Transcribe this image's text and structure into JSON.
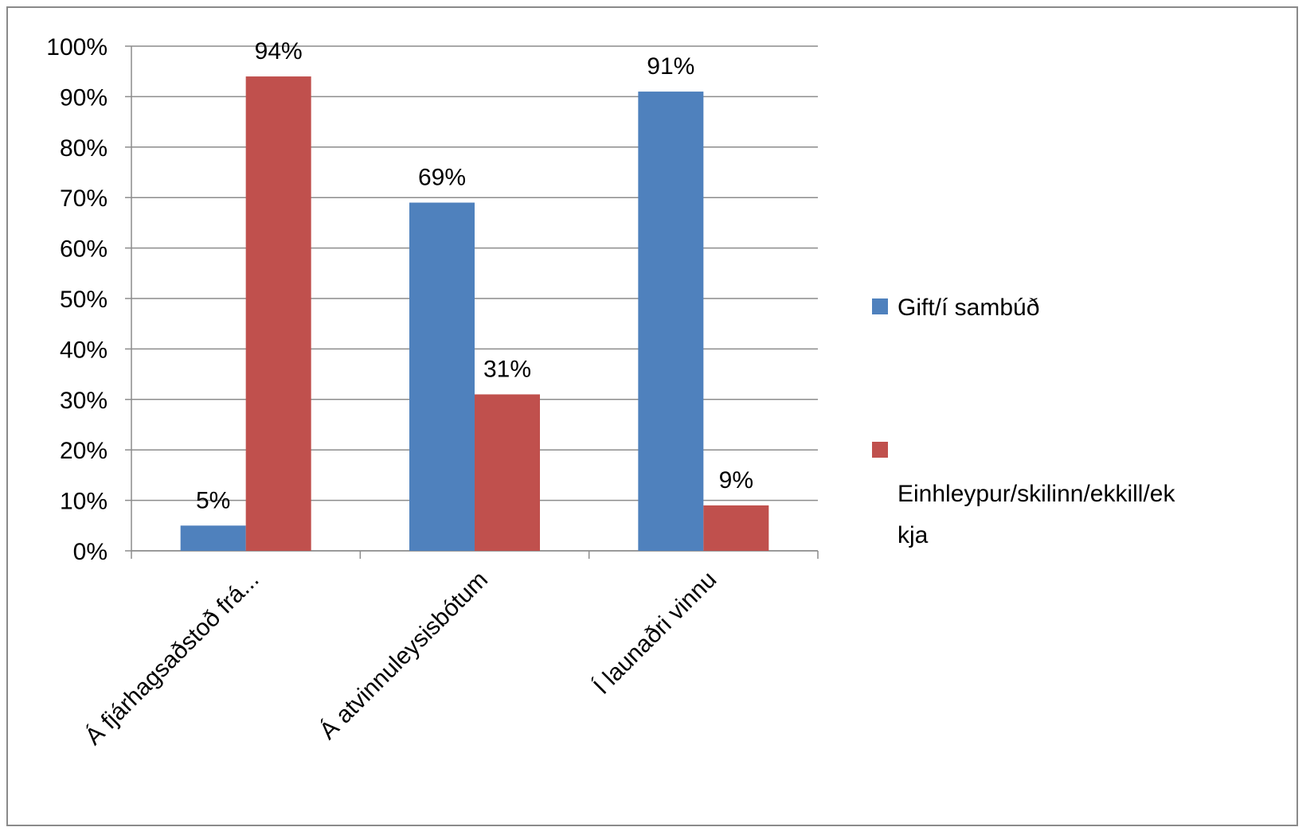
{
  "chart_data": {
    "type": "bar",
    "categories": [
      "Á fjárhagsaðstoð frá...",
      "Á atvinnuleysisbótum",
      "Í launaðri vinnu"
    ],
    "series": [
      {
        "name": "Gift/í sambúð",
        "color": "#4f81bd",
        "values": [
          5,
          69,
          91
        ],
        "labels": [
          "5%",
          "69%",
          "91%"
        ]
      },
      {
        "name": "Einhleypur/skilinn/ekkill/ekkja",
        "name_lines": [
          "Einhleypur/skilinn/ekkill/ek",
          "kja"
        ],
        "color": "#c0504d",
        "values": [
          94,
          31,
          9
        ],
        "labels": [
          "94%",
          "31%",
          "9%"
        ]
      }
    ],
    "ylim": [
      0,
      100
    ],
    "yticks": [
      "0%",
      "10%",
      "20%",
      "30%",
      "40%",
      "50%",
      "60%",
      "70%",
      "80%",
      "90%",
      "100%"
    ],
    "grid": true,
    "legend_position": "right",
    "title": "",
    "xlabel": "",
    "ylabel": ""
  }
}
